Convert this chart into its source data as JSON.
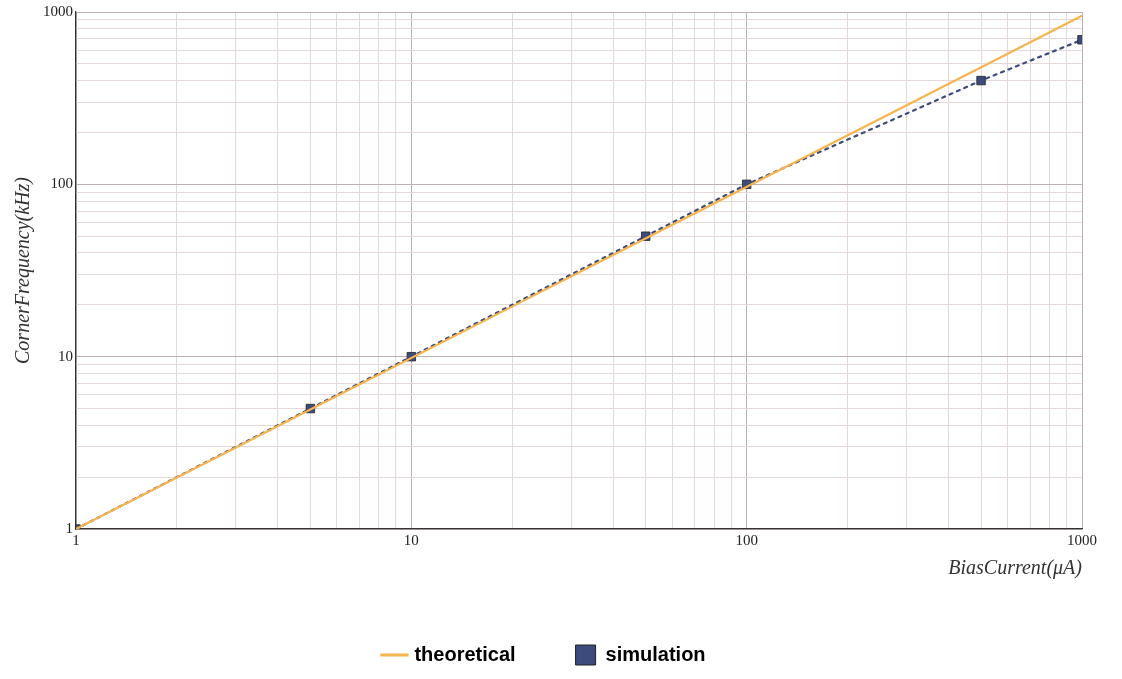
{
  "chart_data": {
    "type": "line",
    "xlabel": "BiasCurrent(μA)",
    "ylabel": "CornerFrequency(kHz)",
    "log": "xy",
    "grid": true,
    "legend": "bottom",
    "xlim": [
      1,
      1000
    ],
    "ylim": [
      1,
      1000
    ],
    "xticks": [
      1,
      {
        "value": 2,
        "label": null
      },
      {
        "value": 3,
        "label": null
      },
      {
        "value": 4,
        "label": null
      },
      {
        "value": 5,
        "label": null
      },
      {
        "value": 6,
        "label": null
      },
      {
        "value": 7,
        "label": null
      },
      {
        "value": 8,
        "label": null
      },
      {
        "value": 9,
        "label": null
      },
      10,
      {
        "value": 20,
        "label": null
      },
      {
        "value": 30,
        "label": null
      },
      {
        "value": 40,
        "label": null
      },
      {
        "value": 50,
        "label": null
      },
      {
        "value": 60,
        "label": null
      },
      {
        "value": 70,
        "label": null
      },
      {
        "value": 80,
        "label": null
      },
      {
        "value": 90,
        "label": null
      },
      100,
      {
        "value": 200,
        "label": null
      },
      {
        "value": 300,
        "label": null
      },
      {
        "value": 400,
        "label": null
      },
      {
        "value": 500,
        "label": null
      },
      {
        "value": 600,
        "label": null
      },
      {
        "value": 700,
        "label": null
      },
      {
        "value": 800,
        "label": null
      },
      {
        "value": 900,
        "label": null
      },
      1000
    ],
    "yticks": [
      1,
      {
        "value": 2,
        "label": null
      },
      {
        "value": 3,
        "label": null
      },
      {
        "value": 4,
        "label": null
      },
      {
        "value": 5,
        "label": null
      },
      {
        "value": 6,
        "label": null
      },
      {
        "value": 7,
        "label": null
      },
      {
        "value": 8,
        "label": null
      },
      {
        "value": 9,
        "label": null
      },
      10,
      {
        "value": 20,
        "label": null
      },
      {
        "value": 30,
        "label": null
      },
      {
        "value": 40,
        "label": null
      },
      {
        "value": 50,
        "label": null
      },
      {
        "value": 60,
        "label": null
      },
      {
        "value": 70,
        "label": null
      },
      {
        "value": 80,
        "label": null
      },
      {
        "value": 90,
        "label": null
      },
      100,
      {
        "value": 200,
        "label": null
      },
      {
        "value": 300,
        "label": null
      },
      {
        "value": 400,
        "label": null
      },
      {
        "value": 500,
        "label": null
      },
      {
        "value": 600,
        "label": null
      },
      {
        "value": 700,
        "label": null
      },
      {
        "value": 800,
        "label": null
      },
      {
        "value": 900,
        "label": null
      },
      1000
    ],
    "series": [
      {
        "name": "theoretical",
        "color": "#f5b44e",
        "x": [
          1,
          1000
        ],
        "values": [
          1,
          950
        ],
        "marker": "none",
        "line_style": "solid"
      },
      {
        "name": "simulation",
        "color": "#3d4a7c",
        "x": [
          1,
          5,
          10,
          50,
          100,
          500,
          1000
        ],
        "values": [
          1,
          5,
          10,
          50,
          100,
          400,
          690
        ],
        "marker": "square",
        "line_style": "dotted"
      }
    ]
  }
}
